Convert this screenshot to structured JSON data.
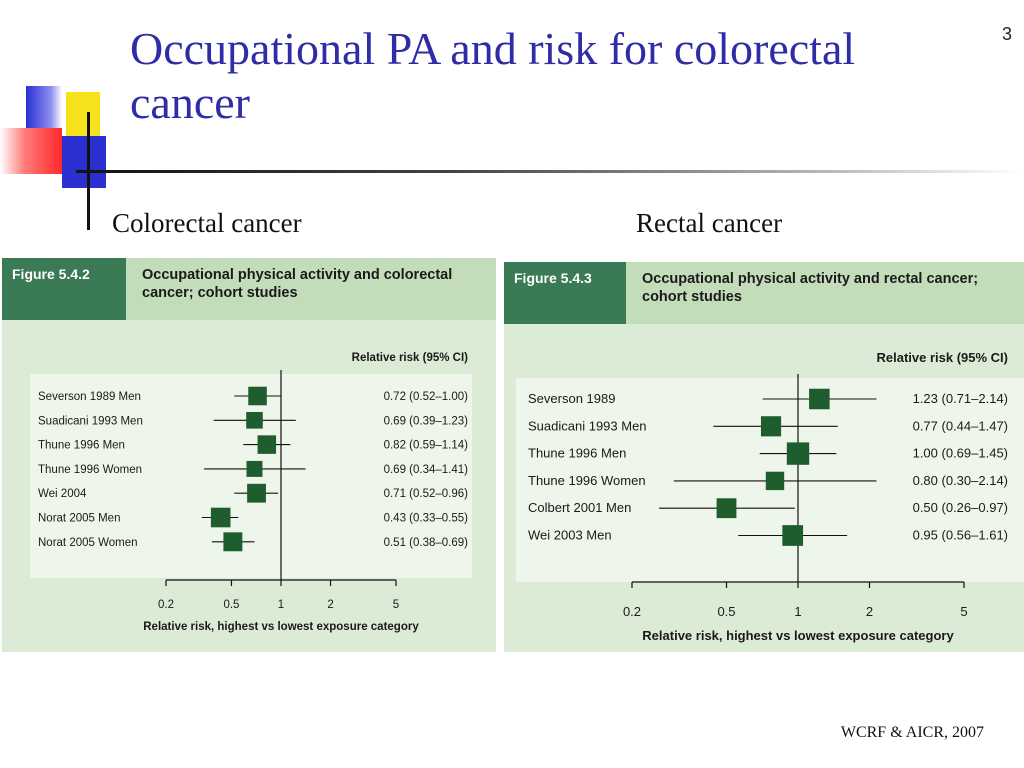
{
  "slide": {
    "title": "Occupational PA and risk for colorectal cancer",
    "number": "3",
    "left_label": "Colorectal cancer",
    "right_label": "Rectal cancer",
    "credit": "WCRF & AICR, 2007"
  },
  "figures": [
    {
      "tag": "Figure 5.4.2",
      "caption": "Occupational physical activity and colorectal cancer; cohort studies"
    },
    {
      "tag": "Figure 5.4.3",
      "caption": "Occupational physical activity and rectal cancer; cohort studies"
    }
  ],
  "chart_data": [
    {
      "type": "scatter",
      "subtype": "forest-plot",
      "scale": "log",
      "column_header": "Relative risk (95% CI)",
      "xlabel": "Relative risk, highest vs lowest exposure category",
      "xticks": [
        0.2,
        0.5,
        1,
        2,
        5
      ],
      "xtick_labels": [
        "0.2",
        "0.5",
        "1",
        "2",
        "5"
      ],
      "xlim": [
        0.2,
        5
      ],
      "reference_line": 1,
      "rows": [
        {
          "label": "Severson 1989 Men",
          "rr": 0.72,
          "low": 0.52,
          "high": 1.0,
          "text": "0.72 (0.52–1.00)"
        },
        {
          "label": "Suadicani 1993 Men",
          "rr": 0.69,
          "low": 0.39,
          "high": 1.23,
          "text": "0.69 (0.39–1.23)"
        },
        {
          "label": "Thune 1996 Men",
          "rr": 0.82,
          "low": 0.59,
          "high": 1.14,
          "text": "0.82 (0.59–1.14)"
        },
        {
          "label": "Thune 1996 Women",
          "rr": 0.69,
          "low": 0.34,
          "high": 1.41,
          "text": "0.69 (0.34–1.41)"
        },
        {
          "label": "Wei 2004",
          "rr": 0.71,
          "low": 0.52,
          "high": 0.96,
          "text": "0.71 (0.52–0.96)"
        },
        {
          "label": "Norat 2005 Men",
          "rr": 0.43,
          "low": 0.33,
          "high": 0.55,
          "text": "0.43 (0.33–0.55)"
        },
        {
          "label": "Norat 2005 Women",
          "rr": 0.51,
          "low": 0.38,
          "high": 0.69,
          "text": "0.51 (0.38–0.69)"
        }
      ],
      "marker_color": "#1f5c2e"
    },
    {
      "type": "scatter",
      "subtype": "forest-plot",
      "scale": "log",
      "column_header": "Relative risk (95% CI)",
      "xlabel": "Relative risk, highest vs lowest exposure category",
      "xticks": [
        0.2,
        0.5,
        1,
        2,
        5
      ],
      "xtick_labels": [
        "0.2",
        "0.5",
        "1",
        "2",
        "5"
      ],
      "xlim": [
        0.2,
        5
      ],
      "reference_line": 1,
      "rows": [
        {
          "label": "Severson 1989",
          "rr": 1.23,
          "low": 0.71,
          "high": 2.14,
          "text": "1.23 (0.71–2.14)"
        },
        {
          "label": "Suadicani 1993 Men",
          "rr": 0.77,
          "low": 0.44,
          "high": 1.47,
          "text": "0.77 (0.44–1.47)"
        },
        {
          "label": "Thune 1996 Men",
          "rr": 1.0,
          "low": 0.69,
          "high": 1.45,
          "text": "1.00 (0.69–1.45)"
        },
        {
          "label": "Thune 1996 Women",
          "rr": 0.8,
          "low": 0.3,
          "high": 2.14,
          "text": "0.80 (0.30–2.14)"
        },
        {
          "label": "Colbert 2001 Men",
          "rr": 0.5,
          "low": 0.26,
          "high": 0.97,
          "text": "0.50 (0.26–0.97)"
        },
        {
          "label": "Wei 2003 Men",
          "rr": 0.95,
          "low": 0.56,
          "high": 1.61,
          "text": "0.95 (0.56–1.61)"
        }
      ],
      "marker_color": "#1f5c2e"
    }
  ]
}
